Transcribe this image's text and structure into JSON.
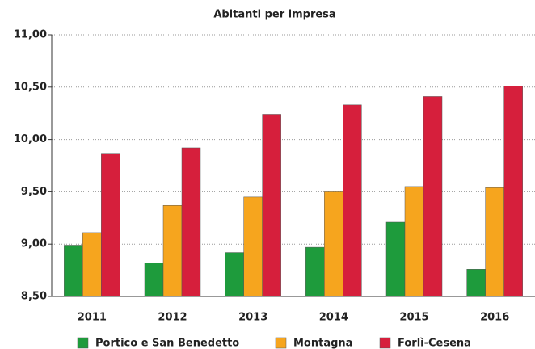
{
  "chart_data": {
    "type": "bar",
    "title": "Abitanti per impresa",
    "categories": [
      "2011",
      "2012",
      "2013",
      "2014",
      "2015",
      "2016"
    ],
    "series": [
      {
        "name": "Portico e San Benedetto",
        "color": "#1e9b3c",
        "values": [
          8.99,
          8.82,
          8.92,
          8.97,
          9.21,
          8.76
        ]
      },
      {
        "name": "Montagna",
        "color": "#f6a51e",
        "values": [
          9.11,
          9.37,
          9.45,
          9.5,
          9.55,
          9.54
        ]
      },
      {
        "name": "Forlì-Cesena",
        "color": "#d61f3c",
        "values": [
          9.86,
          9.92,
          10.24,
          10.33,
          10.41,
          10.51
        ]
      }
    ],
    "ylim": [
      8.5,
      11
    ],
    "yticks": [
      {
        "value": 8.5,
        "label": "8,50"
      },
      {
        "value": 9,
        "label": "9,00"
      },
      {
        "value": 9.5,
        "label": "9,50"
      },
      {
        "value": 10,
        "label": "10,00"
      },
      {
        "value": 10.5,
        "label": "10,50"
      },
      {
        "value": 11,
        "label": "11,00"
      }
    ],
    "grid": true
  }
}
